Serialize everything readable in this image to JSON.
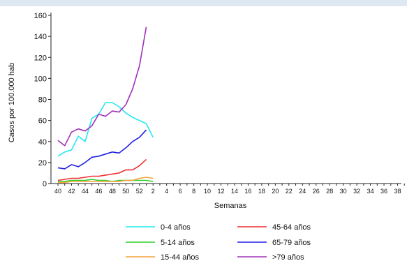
{
  "chart_data": {
    "type": "line",
    "xlabel": "Semanas",
    "ylabel": "Casos por 100.000 hab",
    "ylim": [
      0,
      160
    ],
    "yticks": [
      0,
      20,
      40,
      60,
      80,
      100,
      120,
      140,
      160
    ],
    "x_tick_labels": [
      "40",
      "42",
      "44",
      "46",
      "48",
      "50",
      "52",
      "2",
      "4",
      "6",
      "8",
      "10",
      "12",
      "14",
      "16",
      "18",
      "20",
      "22",
      "24",
      "26",
      "28",
      "30",
      "32",
      "34",
      "36",
      "38"
    ],
    "x_categories": [
      "40",
      "41",
      "42",
      "43",
      "44",
      "45",
      "46",
      "47",
      "48",
      "49",
      "50",
      "51",
      "52",
      "53",
      "1",
      "2",
      "3",
      "4",
      "5",
      "6",
      "7",
      "8",
      "9",
      "10",
      "11",
      "12",
      "13",
      "14",
      "15",
      "16",
      "17",
      "18",
      "19",
      "20",
      "21",
      "22",
      "23",
      "24",
      "25",
      "26",
      "27",
      "28",
      "29",
      "30",
      "31",
      "32",
      "33",
      "34",
      "35",
      "36",
      "37",
      "38",
      "39"
    ],
    "grid": false,
    "legend_position": "bottom",
    "series": [
      {
        "name": "0-4 años",
        "color": "#22e8f0",
        "values": [
          26,
          30,
          32,
          45,
          40,
          62,
          66,
          77,
          77,
          73,
          67,
          63,
          60,
          57,
          44
        ]
      },
      {
        "name": "5-14 años",
        "color": "#2fd02f",
        "values": [
          2,
          2,
          3,
          3,
          3,
          4,
          3,
          3,
          2,
          3,
          3,
          3,
          3,
          3,
          2
        ]
      },
      {
        "name": "15-44 años",
        "color": "#f5a23a",
        "values": [
          1,
          1,
          2,
          2,
          2,
          2,
          2,
          2,
          2,
          2,
          3,
          3,
          5,
          6,
          5
        ]
      },
      {
        "name": "45-64 años",
        "color": "#f03030",
        "values": [
          3,
          4,
          5,
          5,
          6,
          7,
          7,
          8,
          9,
          10,
          13,
          13,
          17,
          23
        ]
      },
      {
        "name": "65-79 años",
        "color": "#2020e0",
        "values": [
          15,
          14,
          18,
          16,
          20,
          25,
          26,
          28,
          30,
          29,
          34,
          40,
          44,
          51
        ]
      },
      {
        "name": ">79 años",
        "color": "#a030b8",
        "values": [
          41,
          36,
          49,
          52,
          50,
          55,
          66,
          64,
          69,
          68,
          75,
          90,
          112,
          149
        ]
      }
    ]
  }
}
